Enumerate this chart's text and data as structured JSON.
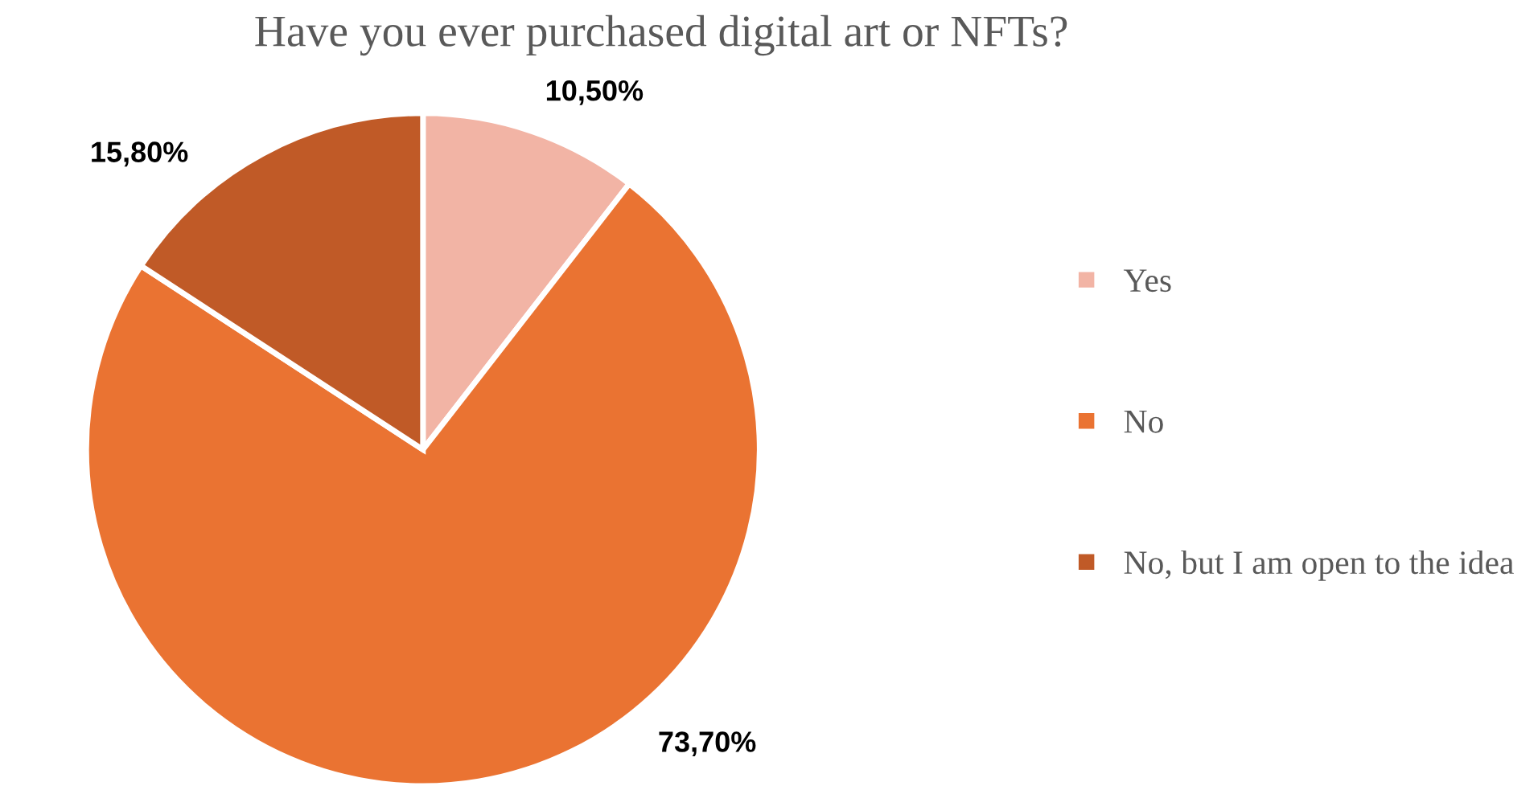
{
  "chart_data": {
    "type": "pie",
    "title": "Have you ever purchased digital art or NFTs?",
    "categories": [
      "Yes",
      "No",
      "No, but I am open to the idea"
    ],
    "values": [
      10.5,
      73.7,
      15.8
    ],
    "value_labels": [
      "10,50%",
      "73,70%",
      "15,80%"
    ],
    "colors": [
      "#f2b4a5",
      "#ea7332",
      "#c05a27"
    ],
    "legend": "right"
  }
}
